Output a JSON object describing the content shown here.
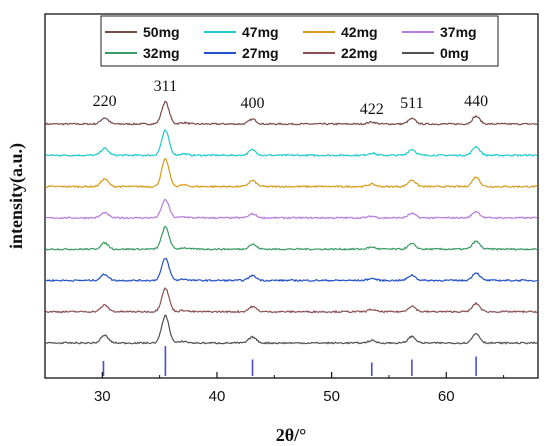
{
  "chart_data": {
    "type": "line",
    "xlabel": "2θ/°",
    "ylabel": "intensity(a.u.)",
    "xlim": [
      25,
      68
    ],
    "xticks": [
      30,
      40,
      50,
      60
    ],
    "legend_position": "top",
    "peak_labels": [
      {
        "text": "220",
        "x": 30.2
      },
      {
        "text": "311",
        "x": 35.5
      },
      {
        "text": "400",
        "x": 43.1
      },
      {
        "text": "422",
        "x": 53.5
      },
      {
        "text": "511",
        "x": 57.0
      },
      {
        "text": "440",
        "x": 62.6
      }
    ],
    "peaks": [
      {
        "x": 30.2,
        "h": 0.28
      },
      {
        "x": 35.5,
        "h": 1.0
      },
      {
        "x": 37.1,
        "h": 0.06
      },
      {
        "x": 43.1,
        "h": 0.22
      },
      {
        "x": 53.5,
        "h": 0.09
      },
      {
        "x": 57.0,
        "h": 0.24
      },
      {
        "x": 62.6,
        "h": 0.35
      }
    ],
    "series": [
      {
        "name": "50mg",
        "color": "#7a4a48",
        "scale": 0.85
      },
      {
        "name": "47mg",
        "color": "#1fc9c9",
        "scale": 0.95
      },
      {
        "name": "42mg",
        "color": "#d89a1a",
        "scale": 1.05
      },
      {
        "name": "37mg",
        "color": "#b57be0",
        "scale": 0.7
      },
      {
        "name": "32mg",
        "color": "#3a9a62",
        "scale": 0.85
      },
      {
        "name": "27mg",
        "color": "#2350c8",
        "scale": 0.85
      },
      {
        "name": "22mg",
        "color": "#8a4e50",
        "scale": 0.9
      },
      {
        "name": "0mg",
        "color": "#505050",
        "scale": 1.05
      }
    ],
    "reference_color": "#4a4ad8",
    "reference_lines": [
      {
        "x": 30.1,
        "h": 0.5
      },
      {
        "x": 35.5,
        "h": 1.0
      },
      {
        "x": 43.1,
        "h": 0.55
      },
      {
        "x": 53.5,
        "h": 0.45
      },
      {
        "x": 57.0,
        "h": 0.55
      },
      {
        "x": 62.6,
        "h": 0.65
      }
    ]
  }
}
